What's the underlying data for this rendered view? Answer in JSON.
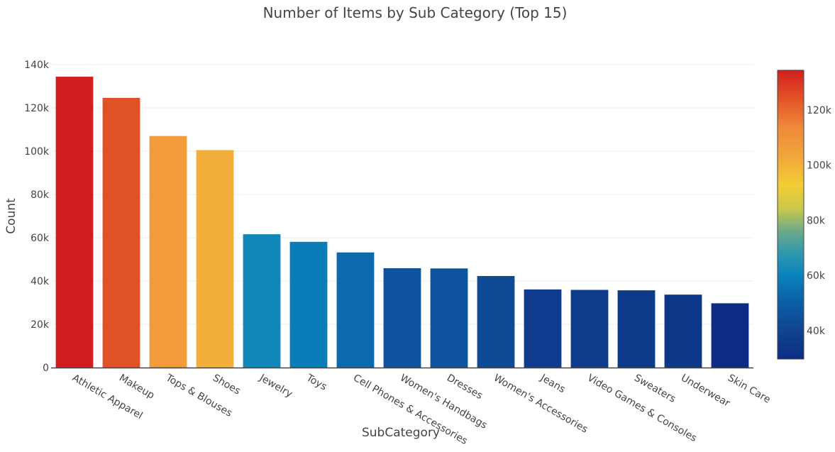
{
  "chart_data": {
    "type": "bar",
    "title": "Number of Items by Sub Category (Top 15)",
    "xlabel": "SubCategory",
    "ylabel": "Count",
    "categories": [
      "Athletic Apparel",
      "Makeup",
      "Tops & Blouses",
      "Shoes",
      "Jewelry",
      "Toys",
      "Cell Phones & Accessories",
      "Women's Handbags",
      "Dresses",
      "Women's Accessories",
      "Jeans",
      "Video Games & Consoles",
      "Sweaters",
      "Underwear",
      "Skin Care"
    ],
    "values": [
      134400,
      124600,
      107000,
      100500,
      61600,
      58100,
      53200,
      45900,
      45800,
      42300,
      36100,
      35900,
      35700,
      33700,
      29700
    ],
    "ylim": [
      0,
      140000
    ],
    "yticks": [
      0,
      20000,
      40000,
      60000,
      80000,
      100000,
      120000,
      140000
    ],
    "ytick_labels": [
      "0",
      "20k",
      "40k",
      "60k",
      "80k",
      "100k",
      "120k",
      "140k"
    ],
    "grid": true,
    "colorbar": {
      "range": [
        29700,
        134400
      ],
      "ticks": [
        40000,
        60000,
        80000,
        100000,
        120000
      ],
      "tick_labels": [
        "40k",
        "60k",
        "80k",
        "100k",
        "120k"
      ],
      "colorscale": [
        [
          0.0,
          "#0d2c84"
        ],
        [
          0.1,
          "#0f4592"
        ],
        [
          0.2,
          "#0b5fa6"
        ],
        [
          0.29,
          "#0a83bc"
        ],
        [
          0.36,
          "#2a97b0"
        ],
        [
          0.44,
          "#6aa98d"
        ],
        [
          0.52,
          "#c8c84a"
        ],
        [
          0.6,
          "#f2cd35"
        ],
        [
          0.7,
          "#f2a63a"
        ],
        [
          0.8,
          "#f08a3a"
        ],
        [
          0.9,
          "#e25428"
        ],
        [
          1.0,
          "#d21e1e"
        ]
      ]
    }
  }
}
